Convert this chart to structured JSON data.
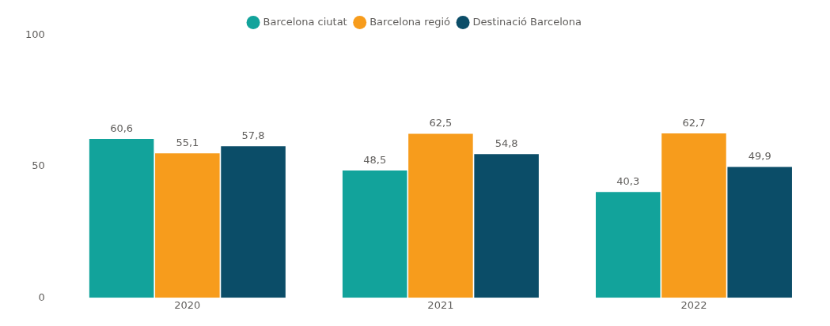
{
  "chart_data": {
    "type": "bar",
    "categories": [
      "2020",
      "2021",
      "2022"
    ],
    "series": [
      {
        "name": "Barcelona ciutat",
        "color": "#12a39b",
        "values": [
          60.6,
          48.5,
          40.3
        ],
        "value_labels": [
          "60,6",
          "48,5",
          "40,3"
        ]
      },
      {
        "name": "Barcelona regió",
        "color": "#f79c1c",
        "values": [
          55.1,
          62.5,
          62.7
        ],
        "value_labels": [
          "55,1",
          "62,5",
          "62,7"
        ]
      },
      {
        "name": "Destinació Barcelona",
        "color": "#0b4d68",
        "values": [
          57.8,
          54.8,
          49.9
        ],
        "value_labels": [
          "57,8",
          "54,8",
          "49,9"
        ]
      }
    ],
    "ylim": [
      0,
      100
    ],
    "yticks": [
      0,
      50,
      100
    ],
    "grid": false,
    "legend": "top"
  }
}
